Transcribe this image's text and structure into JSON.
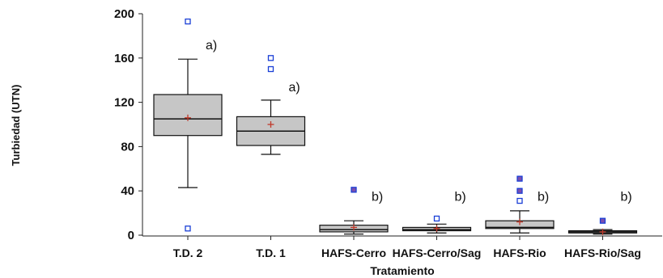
{
  "chart_data": {
    "type": "box",
    "xlabel": "Tratamiento",
    "ylabel": "Turbiedad (UTN)",
    "ylim": [
      0,
      200
    ],
    "yticks": [
      0,
      40,
      80,
      120,
      160,
      200
    ],
    "grid": false,
    "colors": {
      "box_fill": "#c6c6c6",
      "outlier": "#1a3fd6",
      "mean_marker": "#c0392b",
      "far_outlier_fill": "#7a4fb0"
    },
    "categories": [
      "T.D. 2",
      "T.D. 1",
      "HAFS-Cerro",
      "HAFS-Cerro/Sag",
      "HAFS-Rio",
      "HAFS-Rio/Sag"
    ],
    "boxes": [
      {
        "min": 43,
        "q1": 90,
        "median": 105,
        "q3": 127,
        "max": 159,
        "mean": 106,
        "outliers": [
          193,
          6
        ],
        "annotation": "a)"
      },
      {
        "min": 73,
        "q1": 81,
        "median": 94,
        "q3": 107,
        "max": 122,
        "mean": 100,
        "outliers": [
          160,
          150
        ],
        "annotation": "a)"
      },
      {
        "min": 1,
        "q1": 3,
        "median": 5,
        "q3": 9,
        "max": 13,
        "mean": 7,
        "outliers": [
          41
        ],
        "annotation": "b)"
      },
      {
        "min": 2,
        "q1": 4,
        "median": 5,
        "q3": 7,
        "max": 10,
        "mean": 6,
        "outliers": [
          15
        ],
        "annotation": "b)"
      },
      {
        "min": 2,
        "q1": 6,
        "median": 7,
        "q3": 13,
        "max": 22,
        "mean": 12,
        "outliers": [
          51,
          40,
          31
        ],
        "annotation": "b)"
      },
      {
        "min": 1,
        "q1": 2,
        "median": 3,
        "q3": 4,
        "max": 5,
        "mean": 3,
        "outliers": [
          13
        ],
        "annotation": "b)"
      }
    ]
  }
}
